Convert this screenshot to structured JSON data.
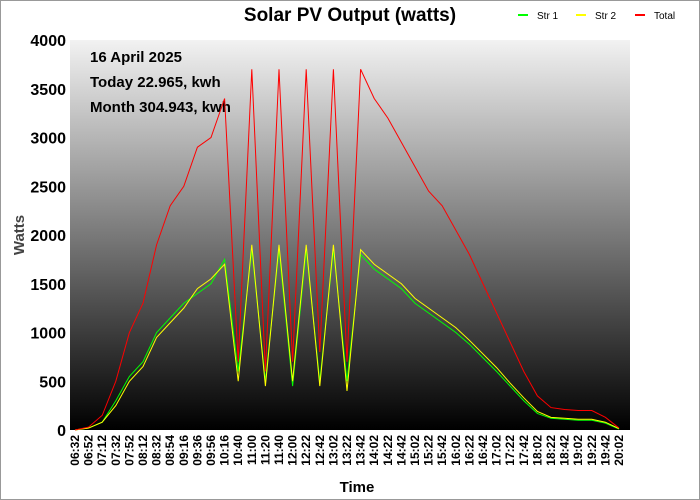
{
  "chart_data": {
    "type": "line",
    "title": "Solar PV Output (watts)",
    "xlabel": "Time",
    "ylabel": "Watts",
    "ylim": [
      0,
      4000
    ],
    "yticks": [
      0,
      500,
      1000,
      1500,
      2000,
      2500,
      3000,
      3500,
      4000
    ],
    "legend_position": "top-right",
    "annotations": [
      "16 April 2025",
      "Today 22.965, kwh",
      "Month 304.943, kwh"
    ],
    "x": [
      "06:32",
      "06:52",
      "07:12",
      "07:32",
      "07:52",
      "08:12",
      "08:32",
      "08:54",
      "09:16",
      "09:36",
      "09:56",
      "10:16",
      "10:40",
      "11:00",
      "11:20",
      "11:40",
      "12:00",
      "12:22",
      "12:42",
      "13:02",
      "13:22",
      "13:42",
      "14:02",
      "14:22",
      "14:42",
      "15:02",
      "15:22",
      "15:42",
      "16:02",
      "16:22",
      "16:42",
      "17:02",
      "17:22",
      "17:42",
      "18:02",
      "18:22",
      "18:42",
      "19:02",
      "19:22",
      "19:42",
      "20:02"
    ],
    "series": [
      {
        "name": "Str 1",
        "color": "#00ff00",
        "values": [
          0,
          20,
          80,
          300,
          550,
          700,
          1000,
          1150,
          1300,
          1400,
          1500,
          1750,
          600,
          1850,
          500,
          1850,
          450,
          1850,
          500,
          1850,
          500,
          1800,
          1650,
          1550,
          1450,
          1300,
          1200,
          1100,
          1000,
          880,
          740,
          600,
          450,
          300,
          170,
          120,
          110,
          100,
          100,
          70,
          10
        ]
      },
      {
        "name": "Str 2",
        "color": "#ffff00",
        "values": [
          0,
          20,
          80,
          250,
          500,
          650,
          950,
          1100,
          1250,
          1450,
          1550,
          1700,
          500,
          1900,
          450,
          1900,
          500,
          1900,
          450,
          1900,
          400,
          1850,
          1700,
          1600,
          1500,
          1350,
          1250,
          1150,
          1050,
          920,
          780,
          640,
          480,
          330,
          190,
          130,
          120,
          110,
          110,
          80,
          15
        ]
      },
      {
        "name": "Total",
        "color": "#ff0000",
        "values": [
          0,
          30,
          150,
          500,
          1000,
          1300,
          1900,
          2300,
          2500,
          2900,
          3000,
          3400,
          700,
          3700,
          600,
          3700,
          700,
          3700,
          800,
          3700,
          700,
          3700,
          3400,
          3200,
          2950,
          2700,
          2450,
          2300,
          2050,
          1800,
          1500,
          1200,
          900,
          600,
          350,
          230,
          210,
          200,
          200,
          130,
          20
        ]
      }
    ]
  }
}
